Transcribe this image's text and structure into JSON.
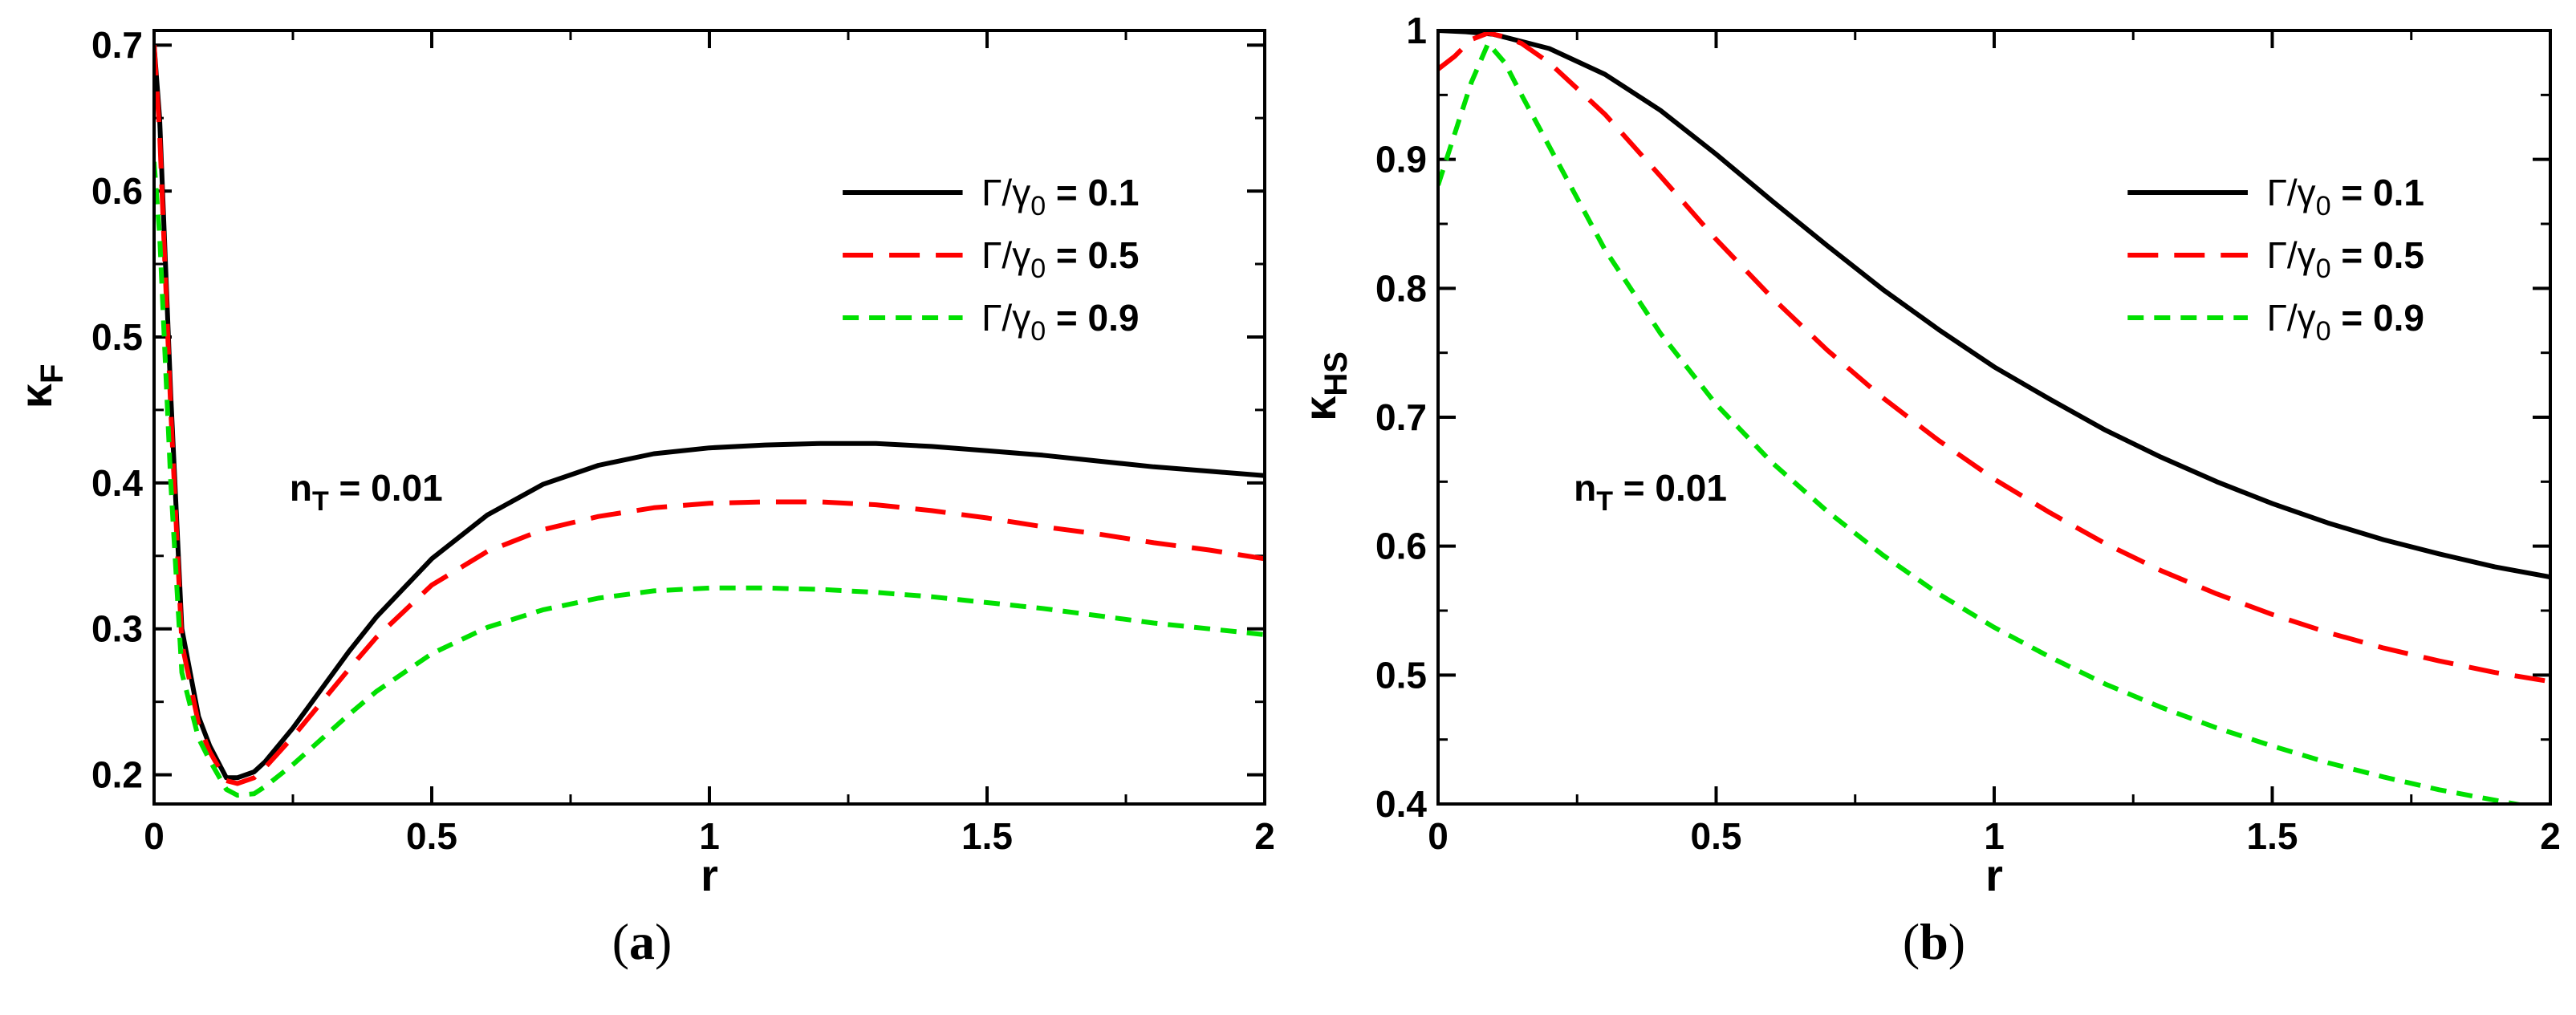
{
  "chart_data": [
    {
      "type": "line",
      "panel": "(a)",
      "xlabel": "r",
      "ylabel": "κ_F",
      "xlim": [
        0,
        2
      ],
      "ylim": [
        0.18,
        0.71
      ],
      "xticks": [
        0,
        0.5,
        1,
        1.5,
        2
      ],
      "xtick_labels": [
        "0",
        "0.5",
        "1",
        "1.5",
        "2"
      ],
      "yticks": [
        0.2,
        0.3,
        0.4,
        0.5,
        0.6,
        0.7
      ],
      "ytick_labels": [
        "0.2",
        "0.3",
        "0.4",
        "0.5",
        "0.6",
        "0.7"
      ],
      "annotation": "n_T = 0.01",
      "legend_position": "top-right",
      "series": [
        {
          "name": "Γ/γ0 = 0.1",
          "legend_label": "Γ/γ0 = 0.1",
          "color": "#000000",
          "style": "solid",
          "x": [
            0.0,
            0.01,
            0.03,
            0.05,
            0.08,
            0.1,
            0.13,
            0.15,
            0.18,
            0.2,
            0.25,
            0.3,
            0.35,
            0.4,
            0.5,
            0.6,
            0.7,
            0.8,
            0.9,
            1.0,
            1.1,
            1.2,
            1.3,
            1.4,
            1.5,
            1.6,
            1.7,
            1.8,
            1.9,
            2.0
          ],
          "y": [
            0.7,
            0.65,
            0.46,
            0.3,
            0.24,
            0.22,
            0.198,
            0.198,
            0.202,
            0.209,
            0.232,
            0.258,
            0.284,
            0.308,
            0.348,
            0.378,
            0.399,
            0.412,
            0.42,
            0.424,
            0.426,
            0.427,
            0.427,
            0.425,
            0.422,
            0.419,
            0.415,
            0.411,
            0.408,
            0.405
          ]
        },
        {
          "name": "Γ/γ0 = 0.5",
          "legend_label": "Γ/γ0 = 0.5",
          "color": "#ff0000",
          "style": "dashed",
          "x": [
            0.0,
            0.01,
            0.03,
            0.05,
            0.08,
            0.1,
            0.13,
            0.15,
            0.18,
            0.2,
            0.25,
            0.3,
            0.35,
            0.4,
            0.5,
            0.6,
            0.7,
            0.8,
            0.9,
            1.0,
            1.1,
            1.2,
            1.3,
            1.4,
            1.5,
            1.6,
            1.7,
            1.8,
            1.9,
            2.0
          ],
          "y": [
            0.7,
            0.64,
            0.45,
            0.29,
            0.235,
            0.216,
            0.196,
            0.194,
            0.198,
            0.205,
            0.226,
            0.249,
            0.272,
            0.294,
            0.33,
            0.353,
            0.368,
            0.377,
            0.383,
            0.386,
            0.387,
            0.387,
            0.385,
            0.381,
            0.376,
            0.37,
            0.365,
            0.359,
            0.354,
            0.348
          ]
        },
        {
          "name": "Γ/γ0 = 0.9",
          "legend_label": "Γ/γ0 = 0.9",
          "color": "#00e000",
          "style": "short-dashed",
          "x": [
            0.0,
            0.01,
            0.03,
            0.05,
            0.08,
            0.1,
            0.13,
            0.15,
            0.18,
            0.2,
            0.25,
            0.3,
            0.35,
            0.4,
            0.5,
            0.6,
            0.7,
            0.8,
            0.9,
            1.0,
            1.1,
            1.2,
            1.3,
            1.4,
            1.5,
            1.6,
            1.7,
            1.8,
            1.9,
            2.0
          ],
          "y": [
            0.62,
            0.57,
            0.4,
            0.27,
            0.225,
            0.21,
            0.19,
            0.186,
            0.187,
            0.192,
            0.207,
            0.224,
            0.241,
            0.257,
            0.283,
            0.301,
            0.313,
            0.321,
            0.326,
            0.328,
            0.328,
            0.327,
            0.325,
            0.322,
            0.318,
            0.314,
            0.309,
            0.304,
            0.3,
            0.296
          ]
        }
      ]
    },
    {
      "type": "line",
      "panel": "(b)",
      "xlabel": "r",
      "ylabel": "κ_HS",
      "xlim": [
        0,
        2
      ],
      "ylim": [
        0.4,
        1.0
      ],
      "xticks": [
        0,
        0.5,
        1,
        1.5,
        2
      ],
      "xtick_labels": [
        "0",
        "0.5",
        "1",
        "1.5",
        "2"
      ],
      "yticks": [
        0.4,
        0.5,
        0.6,
        0.7,
        0.8,
        0.9,
        1.0
      ],
      "ytick_labels": [
        "0.4",
        "0.5",
        "0.6",
        "0.7",
        "0.8",
        "0.9",
        "1"
      ],
      "annotation": "n_T = 0.01",
      "legend_position": "top-right",
      "series": [
        {
          "name": "Γ/γ0 = 0.1",
          "legend_label": "Γ/γ0 = 0.1",
          "color": "#000000",
          "style": "solid",
          "x": [
            0.0,
            0.05,
            0.1,
            0.2,
            0.3,
            0.4,
            0.5,
            0.6,
            0.7,
            0.8,
            0.9,
            1.0,
            1.1,
            1.2,
            1.3,
            1.4,
            1.5,
            1.6,
            1.7,
            1.8,
            1.9,
            2.0
          ],
          "y": [
            1.0,
            0.999,
            0.997,
            0.986,
            0.966,
            0.938,
            0.904,
            0.868,
            0.833,
            0.799,
            0.768,
            0.739,
            0.714,
            0.69,
            0.669,
            0.65,
            0.633,
            0.618,
            0.605,
            0.594,
            0.584,
            0.576
          ]
        },
        {
          "name": "Γ/γ0 = 0.5",
          "legend_label": "Γ/γ0 = 0.5",
          "color": "#ff0000",
          "style": "dashed",
          "x": [
            0.0,
            0.03,
            0.06,
            0.09,
            0.12,
            0.15,
            0.2,
            0.3,
            0.4,
            0.5,
            0.6,
            0.7,
            0.8,
            0.9,
            1.0,
            1.1,
            1.2,
            1.3,
            1.4,
            1.5,
            1.6,
            1.7,
            1.8,
            1.9,
            2.0
          ],
          "y": [
            0.97,
            0.98,
            0.993,
            0.998,
            0.995,
            0.99,
            0.975,
            0.935,
            0.887,
            0.838,
            0.793,
            0.752,
            0.715,
            0.682,
            0.652,
            0.626,
            0.602,
            0.581,
            0.563,
            0.547,
            0.533,
            0.521,
            0.511,
            0.502,
            0.495
          ]
        },
        {
          "name": "Γ/γ0 = 0.9",
          "legend_label": "Γ/γ0 = 0.9",
          "color": "#00e000",
          "style": "short-dashed",
          "x": [
            0.0,
            0.03,
            0.06,
            0.09,
            0.12,
            0.15,
            0.2,
            0.3,
            0.4,
            0.5,
            0.6,
            0.7,
            0.8,
            0.9,
            1.0,
            1.1,
            1.2,
            1.3,
            1.4,
            1.5,
            1.6,
            1.7,
            1.8,
            1.9,
            2.0
          ],
          "y": [
            0.88,
            0.92,
            0.96,
            0.99,
            0.975,
            0.95,
            0.91,
            0.83,
            0.765,
            0.71,
            0.665,
            0.627,
            0.593,
            0.563,
            0.537,
            0.514,
            0.493,
            0.475,
            0.459,
            0.445,
            0.432,
            0.421,
            0.411,
            0.403,
            0.395
          ]
        }
      ]
    }
  ]
}
